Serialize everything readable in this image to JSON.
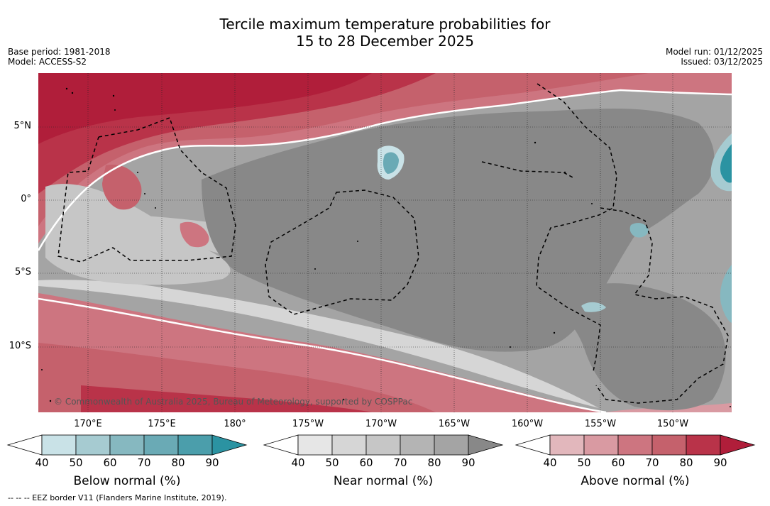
{
  "title": {
    "line1": "Tercile maximum temperature probabilities for",
    "line2": "15 to 28 December 2025"
  },
  "meta": {
    "base_period": "Base period: 1981-2018",
    "model": "Model: ACCESS-S2",
    "model_run": "Model run: 01/12/2025",
    "issued": "Issued: 03/12/2025"
  },
  "map": {
    "lat_labels": [
      "5°N",
      "0°",
      "5°S",
      "10°S"
    ],
    "lon_labels": [
      "170°E",
      "175°E",
      "180°",
      "175°W",
      "170°W",
      "165°W",
      "160°W",
      "155°W",
      "150°W"
    ],
    "attribution": "© Commonwealth of Australia 2025, Bureau of Meteorology, supported by COSPPac"
  },
  "colorbars": [
    {
      "title": "Below normal (%)",
      "ticks": [
        "40",
        "50",
        "60",
        "70",
        "80",
        "90"
      ],
      "colors": [
        "#c9e2e7",
        "#a6cbd1",
        "#86b8c0",
        "#6aaab5",
        "#4b9eab",
        "#2b93a2"
      ]
    },
    {
      "title": "Near normal (%)",
      "ticks": [
        "40",
        "50",
        "60",
        "70",
        "80",
        "90"
      ],
      "colors": [
        "#e6e6e6",
        "#d6d6d6",
        "#c6c6c6",
        "#b4b4b4",
        "#a4a4a4",
        "#888888"
      ]
    },
    {
      "title": "Above normal (%)",
      "ticks": [
        "40",
        "50",
        "60",
        "70",
        "80",
        "90"
      ],
      "colors": [
        "#e2b7bc",
        "#d99aa2",
        "#cd7580",
        "#c5616c",
        "#b93349",
        "#b01e3a"
      ]
    }
  ],
  "footnote": "-- -- -- EEZ border V11 (Flanders Marine Institute, 2019)."
}
